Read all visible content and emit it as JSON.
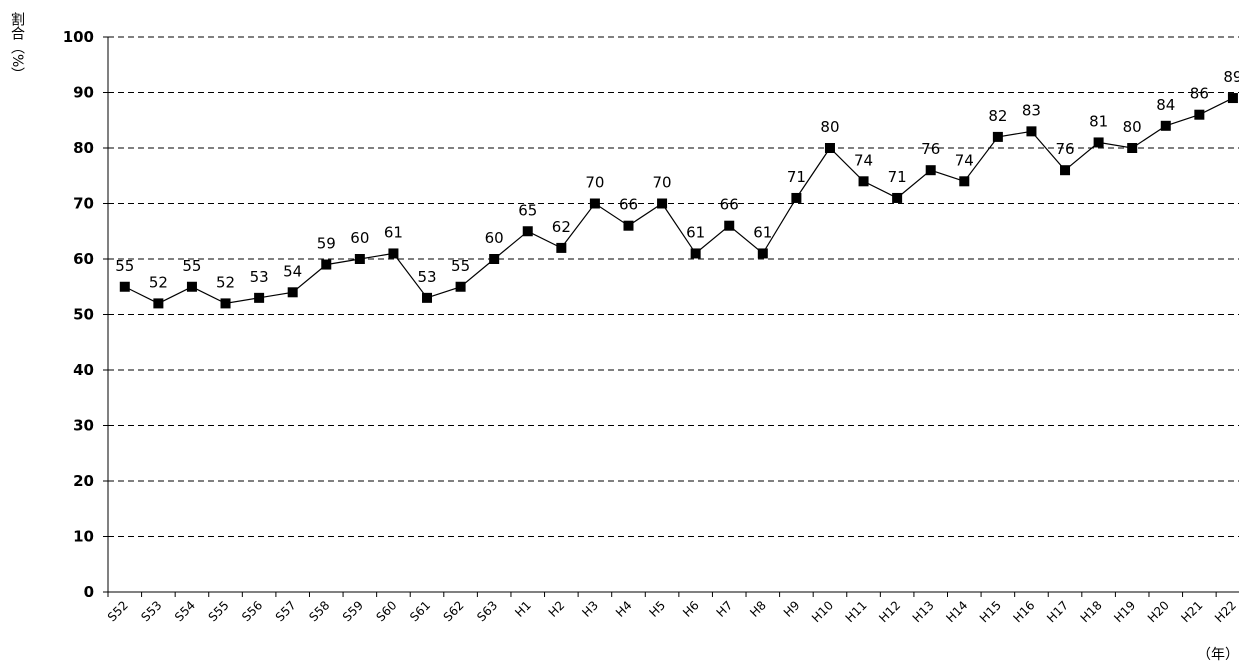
{
  "chart_data": {
    "type": "line",
    "y_label": "割合（%）",
    "x_label": "（年）",
    "categories": [
      "S52",
      "S53",
      "S54",
      "S55",
      "S56",
      "S57",
      "S58",
      "S59",
      "S60",
      "S61",
      "S62",
      "S63",
      "H1",
      "H2",
      "H3",
      "H4",
      "H5",
      "H6",
      "H7",
      "H8",
      "H9",
      "H10",
      "H11",
      "H12",
      "H13",
      "H14",
      "H15",
      "H16",
      "H17",
      "H18",
      "H19",
      "H20",
      "H21",
      "H22"
    ],
    "values": [
      55,
      52,
      55,
      52,
      53,
      54,
      59,
      60,
      61,
      53,
      55,
      60,
      65,
      62,
      70,
      66,
      70,
      61,
      66,
      61,
      71,
      80,
      74,
      71,
      76,
      74,
      82,
      83,
      76,
      81,
      80,
      84,
      86,
      89
    ],
    "color": "#000000",
    "ylim": [
      0,
      100
    ],
    "yticks": [
      0,
      10,
      20,
      30,
      40,
      50,
      60,
      70,
      80,
      90,
      100
    ],
    "grid": true
  }
}
